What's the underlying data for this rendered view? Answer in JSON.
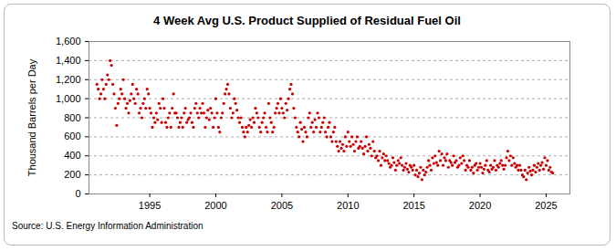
{
  "chart_data": {
    "type": "scatter",
    "title": "4 Week Avg U.S. Product Supplied of Residual Fuel Oil",
    "y_label": "Thousand Barrels per Day",
    "source": "Source: U.S. Energy Information Administration",
    "xlim": [
      1990.4,
      2026.8
    ],
    "xticks": [
      1995,
      2000,
      2005,
      2010,
      2015,
      2020,
      2025
    ],
    "ylim": [
      0,
      1600
    ],
    "yticks": [
      0,
      200,
      400,
      600,
      800,
      {
        "value": 1000,
        "label": "1,000"
      },
      {
        "value": 1200,
        "label": "1,200"
      },
      {
        "value": 1400,
        "label": "1,400"
      },
      {
        "value": 1600,
        "label": "1,600"
      }
    ],
    "grid": true,
    "color": "#cc0000",
    "marker": "circle",
    "x": [
      1991.0,
      1991.1,
      1991.2,
      1991.3,
      1991.4,
      1991.5,
      1991.6,
      1991.7,
      1991.8,
      1991.9,
      1992.0,
      1992.1,
      1992.2,
      1992.3,
      1992.4,
      1992.5,
      1992.6,
      1992.7,
      1992.8,
      1992.9,
      1993.0,
      1993.1,
      1993.2,
      1993.3,
      1993.4,
      1993.5,
      1993.6,
      1993.7,
      1993.8,
      1993.9,
      1994.0,
      1994.1,
      1994.2,
      1994.3,
      1994.4,
      1994.5,
      1994.6,
      1994.7,
      1994.8,
      1994.9,
      1995.0,
      1995.1,
      1995.2,
      1995.3,
      1995.4,
      1995.5,
      1995.6,
      1995.7,
      1995.8,
      1995.9,
      1996.0,
      1996.1,
      1996.2,
      1996.3,
      1996.4,
      1996.5,
      1996.6,
      1996.7,
      1996.8,
      1996.9,
      1997.0,
      1997.1,
      1997.2,
      1997.3,
      1997.4,
      1997.5,
      1997.6,
      1997.7,
      1997.8,
      1997.9,
      1998.0,
      1998.1,
      1998.2,
      1998.3,
      1998.4,
      1998.5,
      1998.6,
      1998.7,
      1998.8,
      1998.9,
      1999.0,
      1999.1,
      1999.2,
      1999.3,
      1999.4,
      1999.5,
      1999.6,
      1999.7,
      1999.8,
      1999.9,
      2000.0,
      2000.1,
      2000.2,
      2000.3,
      2000.4,
      2000.5,
      2000.6,
      2000.7,
      2000.8,
      2000.9,
      2001.0,
      2001.1,
      2001.2,
      2001.3,
      2001.4,
      2001.5,
      2001.6,
      2001.7,
      2001.8,
      2001.9,
      2002.0,
      2002.1,
      2002.2,
      2002.3,
      2002.4,
      2002.5,
      2002.6,
      2002.7,
      2002.8,
      2002.9,
      2003.0,
      2003.1,
      2003.2,
      2003.3,
      2003.4,
      2003.5,
      2003.6,
      2003.7,
      2003.8,
      2003.9,
      2004.0,
      2004.1,
      2004.2,
      2004.3,
      2004.4,
      2004.5,
      2004.6,
      2004.7,
      2004.8,
      2004.9,
      2005.0,
      2005.1,
      2005.2,
      2005.3,
      2005.4,
      2005.5,
      2005.6,
      2005.7,
      2005.8,
      2005.9,
      2006.0,
      2006.1,
      2006.2,
      2006.3,
      2006.4,
      2006.5,
      2006.6,
      2006.7,
      2006.8,
      2006.9,
      2007.0,
      2007.1,
      2007.2,
      2007.3,
      2007.4,
      2007.5,
      2007.6,
      2007.7,
      2007.8,
      2007.9,
      2008.0,
      2008.1,
      2008.2,
      2008.3,
      2008.4,
      2008.5,
      2008.6,
      2008.7,
      2008.8,
      2008.9,
      2009.0,
      2009.1,
      2009.2,
      2009.3,
      2009.4,
      2009.5,
      2009.6,
      2009.7,
      2009.8,
      2009.9,
      2010.0,
      2010.1,
      2010.2,
      2010.3,
      2010.4,
      2010.5,
      2010.6,
      2010.7,
      2010.8,
      2010.9,
      2011.0,
      2011.1,
      2011.2,
      2011.3,
      2011.4,
      2011.5,
      2011.6,
      2011.7,
      2011.8,
      2011.9,
      2012.0,
      2012.1,
      2012.2,
      2012.3,
      2012.4,
      2012.5,
      2012.6,
      2012.7,
      2012.8,
      2012.9,
      2013.0,
      2013.1,
      2013.2,
      2013.3,
      2013.4,
      2013.5,
      2013.6,
      2013.7,
      2013.8,
      2013.9,
      2014.0,
      2014.1,
      2014.2,
      2014.3,
      2014.4,
      2014.5,
      2014.6,
      2014.7,
      2014.8,
      2014.9,
      2015.0,
      2015.1,
      2015.2,
      2015.3,
      2015.4,
      2015.5,
      2015.6,
      2015.7,
      2015.8,
      2015.9,
      2016.0,
      2016.1,
      2016.2,
      2016.3,
      2016.4,
      2016.5,
      2016.6,
      2016.7,
      2016.8,
      2016.9,
      2017.0,
      2017.1,
      2017.2,
      2017.3,
      2017.4,
      2017.5,
      2017.6,
      2017.7,
      2017.8,
      2017.9,
      2018.0,
      2018.1,
      2018.2,
      2018.3,
      2018.4,
      2018.5,
      2018.6,
      2018.7,
      2018.8,
      2018.9,
      2019.0,
      2019.1,
      2019.2,
      2019.3,
      2019.4,
      2019.5,
      2019.6,
      2019.7,
      2019.8,
      2019.9,
      2020.0,
      2020.1,
      2020.2,
      2020.3,
      2020.4,
      2020.5,
      2020.6,
      2020.7,
      2020.8,
      2020.9,
      2021.0,
      2021.1,
      2021.2,
      2021.3,
      2021.4,
      2021.5,
      2021.6,
      2021.7,
      2021.8,
      2021.9,
      2022.0,
      2022.1,
      2022.2,
      2022.3,
      2022.4,
      2022.5,
      2022.6,
      2022.7,
      2022.8,
      2022.9,
      2023.0,
      2023.1,
      2023.2,
      2023.3,
      2023.4,
      2023.5,
      2023.6,
      2023.7,
      2023.8,
      2023.9,
      2024.0,
      2024.1,
      2024.2,
      2024.3,
      2024.4,
      2024.5,
      2024.6,
      2024.7,
      2024.8,
      2024.9,
      2025.0,
      2025.1,
      2025.2,
      2025.3,
      2025.4,
      2025.5
    ],
    "values": [
      1150,
      1100,
      1000,
      1050,
      1200,
      1100,
      1000,
      1150,
      1250,
      1200,
      1400,
      1350,
      1150,
      1050,
      900,
      720,
      950,
      1000,
      1100,
      1050,
      1200,
      1000,
      900,
      950,
      850,
      980,
      1050,
      1150,
      1000,
      950,
      1100,
      1050,
      850,
      900,
      800,
      950,
      1000,
      900,
      1100,
      1050,
      900,
      850,
      700,
      800,
      750,
      850,
      780,
      950,
      900,
      750,
      1000,
      900,
      750,
      700,
      800,
      850,
      700,
      900,
      1050,
      850,
      850,
      800,
      700,
      750,
      800,
      700,
      850,
      900,
      750,
      780,
      800,
      850,
      750,
      700,
      900,
      950,
      850,
      800,
      900,
      850,
      950,
      850,
      700,
      800,
      880,
      780,
      900,
      850,
      700,
      800,
      1000,
      850,
      700,
      650,
      800,
      850,
      950,
      1050,
      1100,
      1150,
      1050,
      900,
      800,
      850,
      1000,
      950,
      880,
      800,
      750,
      800,
      700,
      650,
      600,
      700,
      650,
      720,
      780,
      700,
      800,
      750,
      900,
      850,
      800,
      700,
      650,
      750,
      800,
      850,
      700,
      650,
      950,
      800,
      750,
      650,
      700,
      850,
      900,
      950,
      850,
      1000,
      900,
      850,
      800,
      950,
      880,
      1000,
      1100,
      1150,
      1050,
      900,
      800,
      700,
      650,
      600,
      750,
      680,
      550,
      700,
      650,
      600,
      800,
      850,
      700,
      750,
      650,
      780,
      700,
      850,
      800,
      650,
      700,
      750,
      800,
      650,
      600,
      700,
      750,
      600,
      550,
      650,
      700,
      550,
      500,
      450,
      550,
      480,
      520,
      450,
      600,
      500,
      650,
      550,
      500,
      600,
      520,
      450,
      550,
      600,
      480,
      500,
      550,
      480,
      420,
      500,
      600,
      450,
      520,
      480,
      400,
      550,
      450,
      380,
      400,
      350,
      450,
      300,
      380,
      420,
      350,
      400,
      350,
      320,
      280,
      300,
      380,
      330,
      250,
      300,
      350,
      320,
      380,
      300,
      250,
      280,
      320,
      260,
      230,
      300,
      280,
      250,
      300,
      200,
      250,
      180,
      220,
      280,
      150,
      250,
      200,
      230,
      280,
      350,
      300,
      250,
      380,
      320,
      400,
      330,
      300,
      450,
      350,
      420,
      300,
      380,
      350,
      420,
      280,
      350,
      330,
      300,
      400,
      330,
      350,
      280,
      300,
      380,
      320,
      400,
      350,
      250,
      300,
      280,
      350,
      250,
      280,
      220,
      300,
      320,
      250,
      280,
      320,
      280,
      220,
      260,
      300,
      350,
      250,
      230,
      300,
      260,
      280,
      350,
      250,
      300,
      280,
      320,
      350,
      300,
      260,
      300,
      380,
      450,
      350,
      400,
      300,
      380,
      320,
      280,
      300,
      250,
      300,
      250,
      200,
      180,
      250,
      150,
      220,
      280,
      240,
      200,
      250,
      300,
      230,
      280,
      320,
      250,
      300,
      330,
      260,
      380,
      300,
      350,
      250,
      280,
      230,
      220
    ]
  }
}
